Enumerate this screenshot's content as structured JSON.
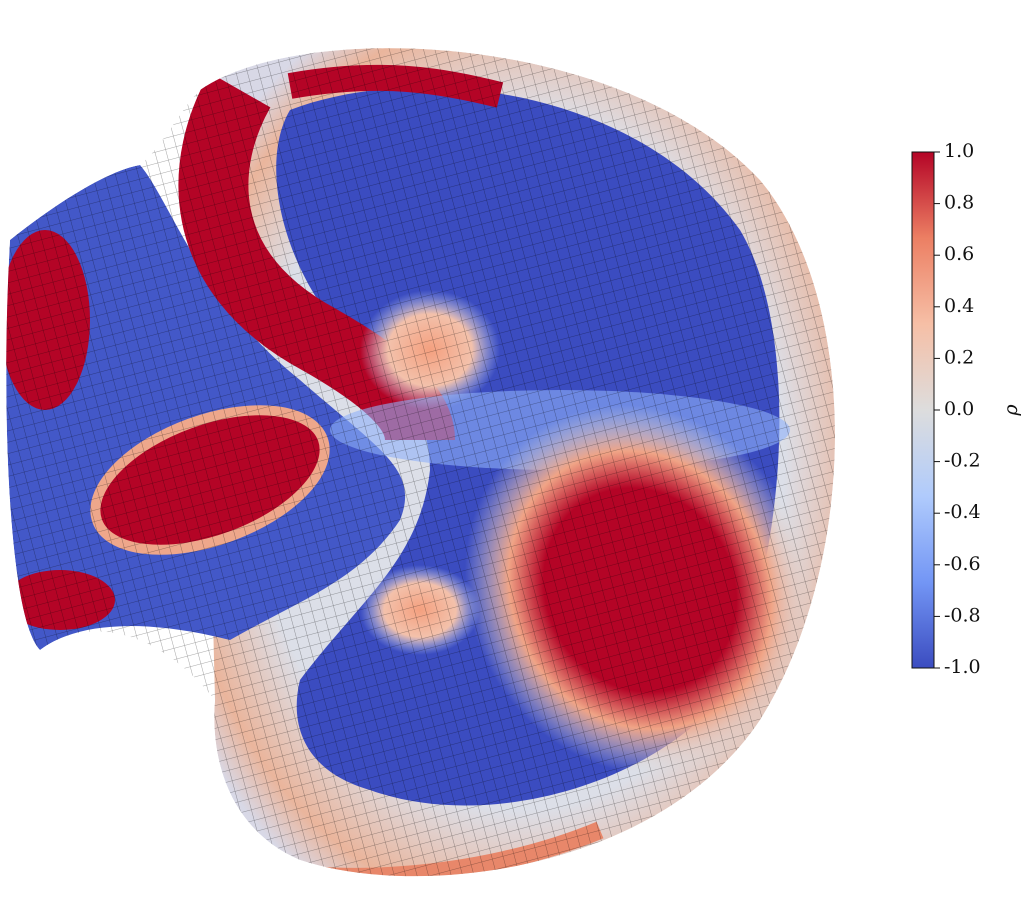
{
  "colorbar": {
    "label": "ρ",
    "lim": [
      -1.0,
      1.0
    ],
    "ticks": [
      {
        "value": 1.0,
        "label": "1.0"
      },
      {
        "value": 0.8,
        "label": "0.8"
      },
      {
        "value": 0.6,
        "label": "0.6"
      },
      {
        "value": 0.4,
        "label": "0.4"
      },
      {
        "value": 0.2,
        "label": "0.2"
      },
      {
        "value": 0.0,
        "label": "0.0"
      },
      {
        "value": -0.2,
        "label": "-0.2"
      },
      {
        "value": -0.4,
        "label": "-0.4"
      },
      {
        "value": -0.6,
        "label": "-0.6"
      },
      {
        "value": -0.8,
        "label": "-0.8"
      },
      {
        "value": -1.0,
        "label": "-1.0"
      }
    ],
    "colors": [
      "#3b4cc0",
      "#7396f5",
      "#b0cbfc",
      "#dddddd",
      "#f6bfa6",
      "#ec7f63",
      "#b40426"
    ]
  }
}
